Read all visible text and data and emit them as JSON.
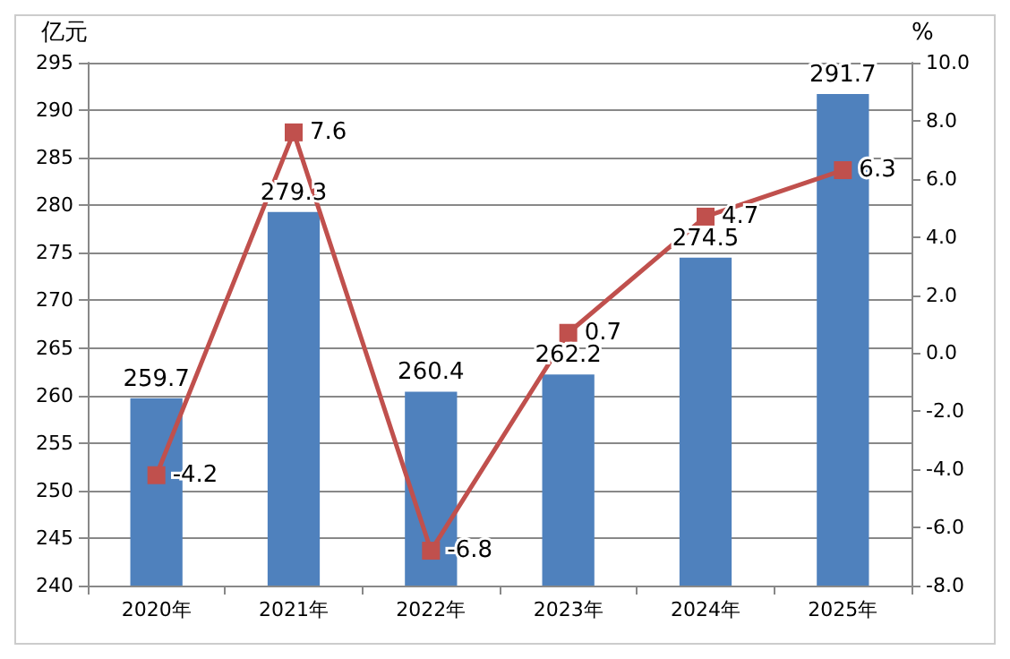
{
  "chart_data": {
    "type": "bar",
    "ylabel": "亿元",
    "y2label": "%",
    "categories": [
      "2020年",
      "2021年",
      "2022年",
      "2023年",
      "2024年",
      "2025年"
    ],
    "series": [
      {
        "color": "#4f81bd",
        "values": [
          259.7,
          279.3,
          260.4,
          262.2,
          274.5,
          291.7
        ]
      },
      {
        "type": "line",
        "axis": "y2",
        "color": "#c0504d",
        "marker": "square",
        "values": [
          -4.2,
          7.6,
          -6.8,
          0.7,
          4.7,
          6.3
        ]
      }
    ],
    "ylim": [
      240,
      295
    ],
    "yticks": [
      240,
      245,
      250,
      255,
      260,
      265,
      270,
      275,
      280,
      285,
      290,
      295
    ],
    "y2lim": [
      -8,
      10
    ],
    "y2ticks": [
      {
        "value": -8,
        "label": "-8.0"
      },
      {
        "value": -6,
        "label": "-6.0"
      },
      {
        "value": -4,
        "label": "-4.0"
      },
      {
        "value": -2,
        "label": "-2.0"
      },
      {
        "value": 0,
        "label": "0.0"
      },
      {
        "value": 2,
        "label": "2.0"
      },
      {
        "value": 4,
        "label": "4.0"
      },
      {
        "value": 6,
        "label": "6.0"
      },
      {
        "value": 8,
        "label": "8.0"
      },
      {
        "value": 10,
        "label": "10.0"
      }
    ],
    "grid": "y",
    "data_labels": true
  }
}
